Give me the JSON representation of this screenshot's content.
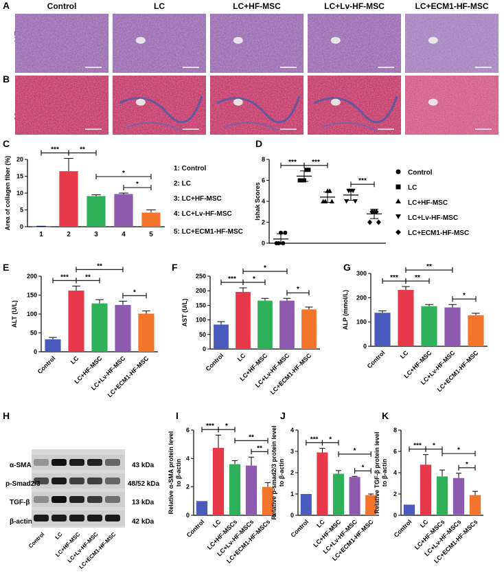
{
  "panel_letters": [
    "A",
    "B",
    "C",
    "D",
    "E",
    "F",
    "G",
    "H",
    "I",
    "J",
    "K"
  ],
  "histology": {
    "columns": [
      "Control",
      "LC",
      "LC+HF-MSC",
      "LC+Lv-HF-MSC",
      "LC+ECM1-HF-MSC"
    ],
    "rows": [
      "HE",
      "Masson"
    ]
  },
  "legend_C": [
    "1: Control",
    "2: LC",
    "3: LC+HF-MSC",
    "4: LC+Lv-HF-MSC",
    "5: LC+ECM1-HF-MSC"
  ],
  "legend_D": [
    "Control",
    "LC",
    "LC+HF-MSC",
    "LC+Lv-HF-MSC",
    "LC+ECM1-HF-MSC"
  ],
  "colors": {
    "control": "#4a5bbd",
    "lc": "#e8394a",
    "hf": "#2fb15a",
    "lv": "#8c5bb0",
    "ecm1": "#f2752b"
  },
  "western": {
    "bands": [
      "α-SMA",
      "p-Smad2/3",
      "TGF-β",
      "β-actin"
    ],
    "sizes": [
      "43 kDa",
      "48/52 kDa",
      "13 kDa",
      "42 kDa"
    ],
    "lanes": [
      "Control",
      "LC",
      "LC+HF-MSC",
      "LC+Lv-HF-MSC",
      "LC+ECM1-HF-MSC"
    ]
  },
  "chart_data": [
    {
      "id": "C",
      "type": "bar",
      "categories": [
        "1",
        "2",
        "3",
        "4",
        "5"
      ],
      "values": [
        0.05,
        16.5,
        9.1,
        9.7,
        4.2
      ],
      "errors": [
        0.1,
        3.8,
        0.4,
        0.3,
        0.8
      ],
      "ylabel": "Area of collagen fiber (%)",
      "ylim": [
        0,
        20
      ],
      "yticks": [
        0,
        5,
        10,
        15,
        20
      ],
      "sig": [
        {
          "a": 0,
          "b": 1,
          "label": "***",
          "level": 0
        },
        {
          "a": 1,
          "b": 2,
          "label": "**",
          "level": 0
        },
        {
          "a": 2,
          "b": 4,
          "label": "*",
          "level": 1
        },
        {
          "a": 3,
          "b": 4,
          "label": "*",
          "level": 0
        }
      ]
    },
    {
      "id": "D",
      "type": "scatter",
      "categories": [
        "Control",
        "LC",
        "LC+HF-MSC",
        "LC+Lv-HF-MSC",
        "LC+ECM1-HF-MSC"
      ],
      "points": [
        [
          0,
          0,
          1,
          0,
          1
        ],
        [
          6,
          6,
          6,
          7,
          7
        ],
        [
          4,
          4,
          5,
          5,
          4
        ],
        [
          4,
          5,
          5,
          5,
          4
        ],
        [
          2,
          3,
          3,
          3,
          2
        ]
      ],
      "means": [
        0.4,
        6.4,
        4.4,
        4.6,
        2.8
      ],
      "sd": [
        0.5,
        0.5,
        0.5,
        0.5,
        0.45
      ],
      "ylabel": "Ishak Scores",
      "ylim": [
        0,
        8
      ],
      "yticks": [
        0,
        2,
        4,
        6,
        8
      ],
      "sig": [
        {
          "a": 0,
          "b": 1,
          "label": "***",
          "level": 0
        },
        {
          "a": 1,
          "b": 2,
          "label": "***",
          "level": 0
        },
        {
          "a": 3,
          "b": 4,
          "label": "***",
          "level": 0
        }
      ]
    },
    {
      "id": "E",
      "type": "bar",
      "categories": [
        "Control",
        "LC",
        "LC+HF-MSC",
        "LC+Lv-HF-MSC",
        "LC+ECM1-HF-MSC"
      ],
      "values": [
        33,
        162,
        128,
        124,
        101
      ],
      "errors": [
        5,
        12,
        10,
        10,
        7
      ],
      "ylabel": "ALT (U/L)",
      "ylim": [
        0,
        200
      ],
      "yticks": [
        0,
        50,
        100,
        150,
        200
      ],
      "sig": [
        {
          "a": 0,
          "b": 1,
          "label": "***",
          "level": 0
        },
        {
          "a": 1,
          "b": 2,
          "label": "**",
          "level": 0
        },
        {
          "a": 1,
          "b": 3,
          "label": "**",
          "level": 1
        },
        {
          "a": 3,
          "b": 4,
          "label": "*",
          "level": 0
        }
      ]
    },
    {
      "id": "F",
      "type": "bar",
      "categories": [
        "Control",
        "LC",
        "LC+HF-MSC",
        "LC+Lv-HF-MSC",
        "LC+ECM1-HF-MSC"
      ],
      "values": [
        84,
        196,
        166,
        166,
        136
      ],
      "errors": [
        10,
        14,
        8,
        8,
        8
      ],
      "ylabel": "AST (U/L)",
      "ylim": [
        0,
        250
      ],
      "yticks": [
        0,
        50,
        100,
        150,
        200,
        250
      ],
      "sig": [
        {
          "a": 0,
          "b": 1,
          "label": "***",
          "level": 0
        },
        {
          "a": 1,
          "b": 2,
          "label": "*",
          "level": 0
        },
        {
          "a": 1,
          "b": 3,
          "label": "*",
          "level": 1
        },
        {
          "a": 3,
          "b": 4,
          "label": "*",
          "level": 0
        }
      ]
    },
    {
      "id": "G",
      "type": "bar",
      "categories": [
        "Control",
        "LC",
        "LC+HF-MSC",
        "LC+Lv-HF-MSC",
        "LC+ECM1-HF-MSC"
      ],
      "values": [
        138,
        232,
        165,
        160,
        128
      ],
      "errors": [
        8,
        14,
        7,
        12,
        8
      ],
      "ylabel": "ALP (mmol/L)",
      "ylim": [
        0,
        300
      ],
      "yticks": [
        0,
        100,
        200,
        300
      ],
      "sig": [
        {
          "a": 0,
          "b": 1,
          "label": "***",
          "level": 0
        },
        {
          "a": 1,
          "b": 2,
          "label": "**",
          "level": 0
        },
        {
          "a": 1,
          "b": 3,
          "label": "**",
          "level": 1
        },
        {
          "a": 3,
          "b": 4,
          "label": "*",
          "level": 0
        }
      ]
    },
    {
      "id": "I",
      "type": "bar",
      "categories": [
        "Control",
        "LC",
        "LC+HF-MSCs",
        "LC+Lv-HF-MSCs",
        "LC+ECM1-HF-MSCs"
      ],
      "values": [
        1.0,
        4.75,
        3.6,
        3.5,
        2.0
      ],
      "errors": [
        0,
        0.9,
        0.25,
        0.6,
        0.3
      ],
      "ylabel": "Relative α-SMA protein level to β-actin",
      "ylim": [
        0,
        6
      ],
      "yticks": [
        0,
        2,
        4,
        6
      ],
      "sig": [
        {
          "a": 0,
          "b": 1,
          "label": "***",
          "level": 0
        },
        {
          "a": 1,
          "b": 2,
          "label": "*",
          "level": 0
        },
        {
          "a": 2,
          "b": 4,
          "label": "**",
          "level": 1
        },
        {
          "a": 3,
          "b": 4,
          "label": "**",
          "level": 0
        }
      ]
    },
    {
      "id": "J",
      "type": "bar",
      "categories": [
        "Control",
        "LC",
        "LC+HF-MSC",
        "LC+Lv-HF-MSC",
        "LC+ECM1-HF-MSC"
      ],
      "values": [
        1.0,
        2.95,
        1.95,
        1.8,
        0.95
      ],
      "errors": [
        0,
        0.2,
        0.15,
        0.03,
        0.05
      ],
      "ylabel": "Relative p-smad2/3 protein level to β-actin",
      "ylim": [
        0,
        4
      ],
      "yticks": [
        0,
        1,
        2,
        3,
        4
      ],
      "sig": [
        {
          "a": 0,
          "b": 1,
          "label": "***",
          "level": 0
        },
        {
          "a": 1,
          "b": 2,
          "label": "*",
          "level": 0
        },
        {
          "a": 2,
          "b": 4,
          "label": "*",
          "level": 1
        },
        {
          "a": 3,
          "b": 4,
          "label": "*",
          "level": 0
        }
      ]
    },
    {
      "id": "K",
      "type": "bar",
      "categories": [
        "Control",
        "LC",
        "LC+HF-MSCs",
        "LC+Lv-HF-MSCs",
        "LC+ECM1-HF-MSCs"
      ],
      "values": [
        1.0,
        4.75,
        3.65,
        3.5,
        1.9
      ],
      "errors": [
        0,
        0.95,
        0.6,
        0.45,
        0.35
      ],
      "ylabel": "Relative TGF-β protein level to β-actin",
      "ylim": [
        0,
        8
      ],
      "yticks": [
        0,
        2,
        4,
        6,
        8
      ],
      "sig": [
        {
          "a": 0,
          "b": 1,
          "label": "***",
          "level": 0
        },
        {
          "a": 1,
          "b": 2,
          "label": "*",
          "level": 0
        },
        {
          "a": 2,
          "b": 4,
          "label": "*",
          "level": 1
        },
        {
          "a": 3,
          "b": 4,
          "label": "*",
          "level": 0
        }
      ]
    }
  ]
}
